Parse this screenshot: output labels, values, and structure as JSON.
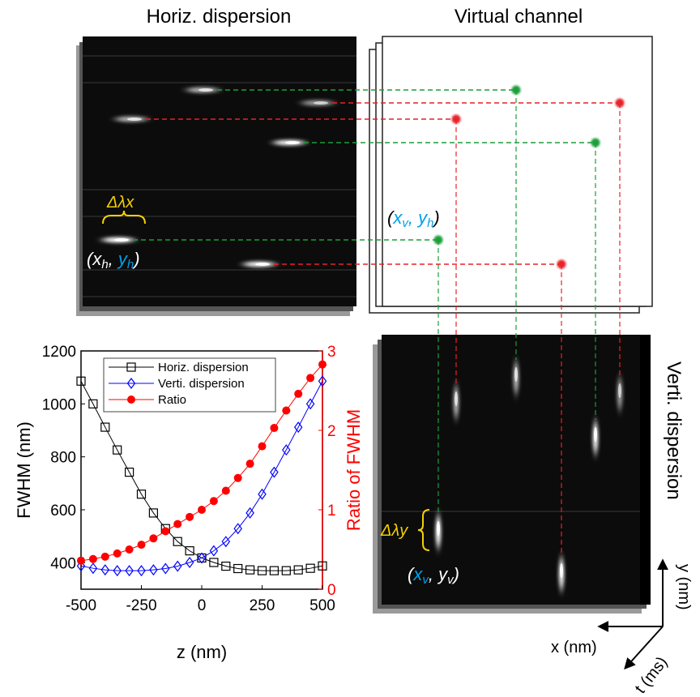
{
  "panels": {
    "horiz_title": "Horiz. dispersion",
    "virtual_title": "Virtual channel",
    "verti_title": "Verti. dispersion"
  },
  "annotations": {
    "delta_lambda_x": "Δλx",
    "delta_lambda_y": "Δλy",
    "xh_yh": {
      "open": "(",
      "x": "x",
      "xsub": "h",
      "sep": ", ",
      "y": "y",
      "ysub": "h",
      "close": ")"
    },
    "xv_yh": {
      "open": "(",
      "x": "x",
      "xsub": "v",
      "sep": ", ",
      "y": "y",
      "ysub": "h",
      "close": ")"
    },
    "xv_yv": {
      "open": "(",
      "x": "x",
      "xsub": "v",
      "sep": ", ",
      "y": "y",
      "ysub": "v",
      "close": ")"
    }
  },
  "axes_triad": {
    "x_label": "x (nm)",
    "y_label": "y (nm)",
    "t_label": "t (ms)"
  },
  "colors": {
    "green": "#1a9e3a",
    "red": "#e8202a",
    "yellow": "#f5d000",
    "cyan": "#00a0e8",
    "blue": "#0000ff",
    "black": "#000000"
  },
  "chart_data": {
    "type": "line",
    "xlabel": "z (nm)",
    "ylabel": "FWHM (nm)",
    "y2label": "Ratio of FWHM",
    "xlim": [
      -500,
      500
    ],
    "ylim": [
      300,
      1200
    ],
    "y2lim": [
      0,
      3
    ],
    "xticks": [
      -500,
      -250,
      0,
      250,
      500
    ],
    "yticks": [
      400,
      600,
      800,
      1000,
      1200
    ],
    "y2ticks": [
      0,
      1,
      2,
      3
    ],
    "grid": false,
    "legend_position": "top",
    "x": [
      -500,
      -450,
      -400,
      -350,
      -300,
      -250,
      -200,
      -150,
      -100,
      -50,
      0,
      50,
      100,
      150,
      200,
      250,
      300,
      350,
      400,
      450,
      500
    ],
    "series": [
      {
        "name": "Horiz. dispersion",
        "axis": "left",
        "marker": "square",
        "color": "#000000",
        "values": [
          1086,
          1000,
          912,
          826,
          742,
          659,
          588,
          529,
          480,
          445,
          418,
          401,
          387,
          378,
          373,
          370,
          370,
          370,
          373,
          379,
          388
        ]
      },
      {
        "name": "Verti. dispersion",
        "axis": "left",
        "marker": "diamond",
        "color": "#0000ff",
        "values": [
          388,
          379,
          373,
          370,
          370,
          370,
          373,
          378,
          387,
          401,
          418,
          445,
          480,
          529,
          588,
          659,
          742,
          826,
          912,
          1000,
          1086
        ]
      },
      {
        "name": "Ratio",
        "axis": "right",
        "marker": "filled-circle",
        "color": "#ff0000",
        "values": [
          0.36,
          0.38,
          0.41,
          0.45,
          0.5,
          0.56,
          0.64,
          0.73,
          0.82,
          0.91,
          1.0,
          1.11,
          1.24,
          1.4,
          1.58,
          1.8,
          2.03,
          2.25,
          2.46,
          2.66,
          2.83
        ]
      }
    ]
  }
}
